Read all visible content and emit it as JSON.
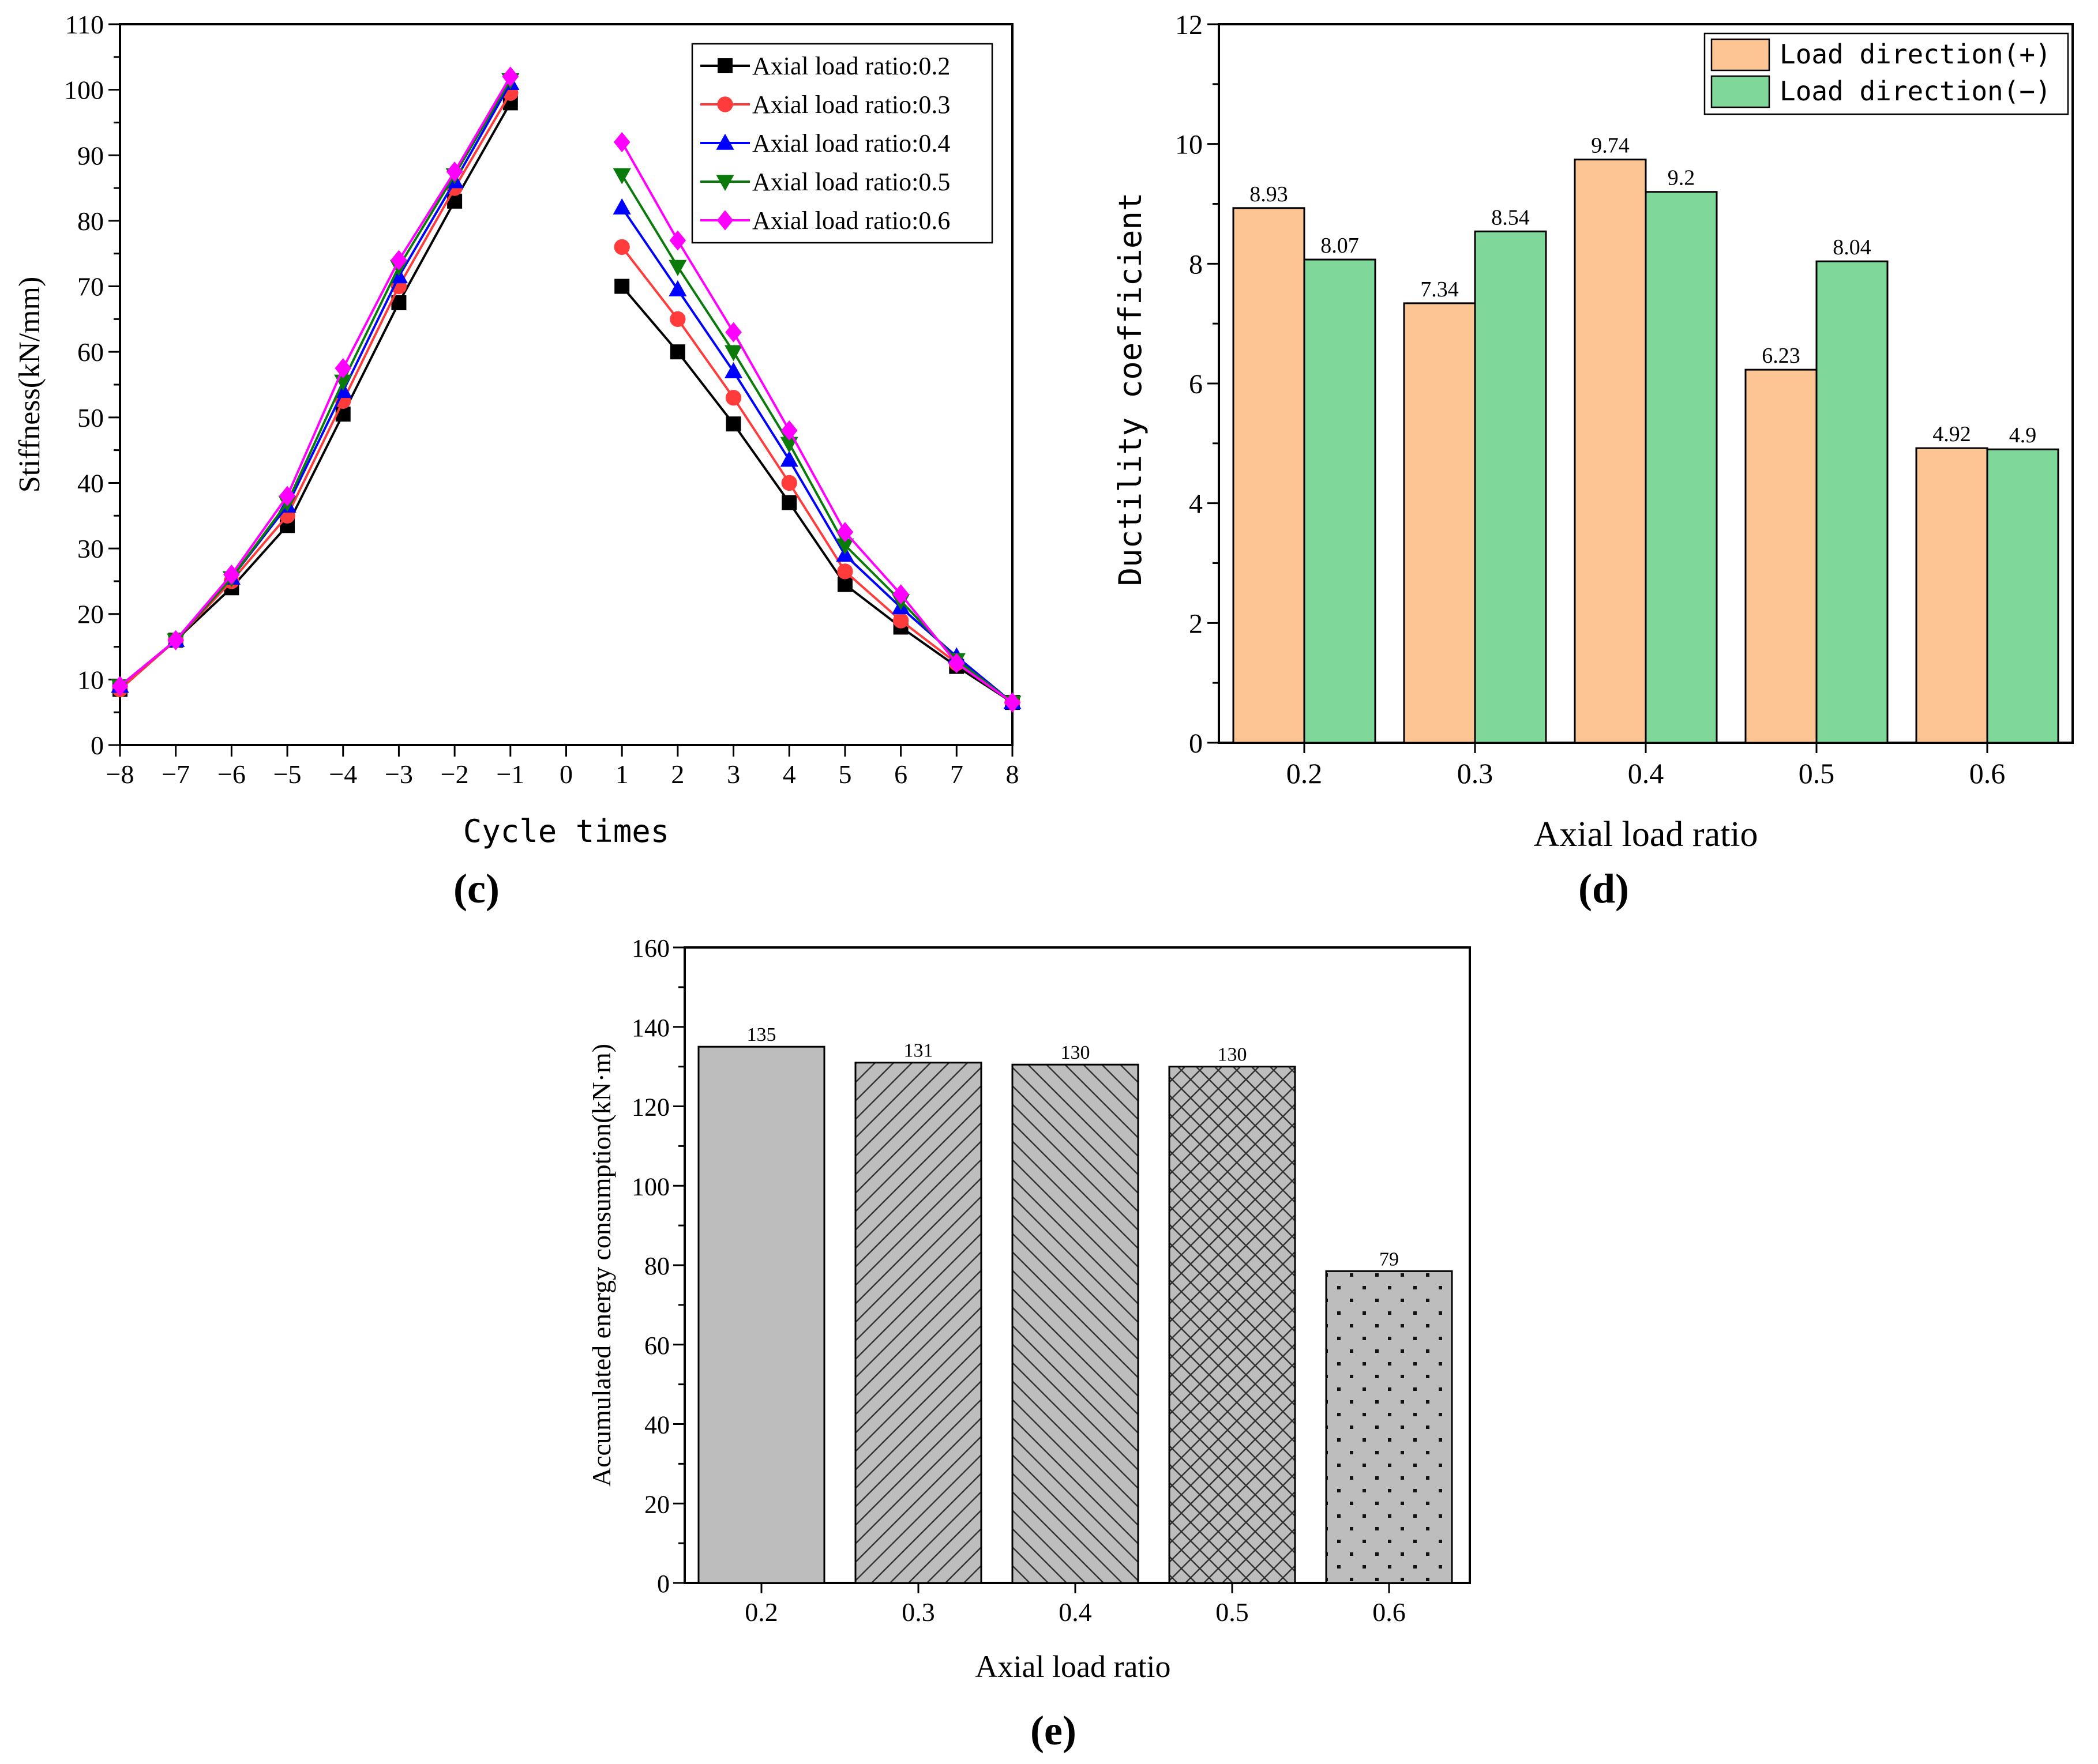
{
  "panel_labels": {
    "c": "(c)",
    "d": "(d)",
    "e": "(e)"
  },
  "colors": {
    "s02": "#000000",
    "s03": "#ff3b3b",
    "s04": "#0000ff",
    "s05": "#0a7a0a",
    "s06": "#ff00ff",
    "plus": "#fdc593",
    "minus": "#7fd89a",
    "gray": "#bdbdbd"
  },
  "chart_data": [
    {
      "id": "c",
      "type": "line",
      "xlabel": "Cycle times",
      "ylabel": "Stiffness(kN/mm)",
      "xlim": [
        -8,
        8
      ],
      "ylim": [
        0,
        110
      ],
      "x_ticks": [
        "−8",
        "−7",
        "−6",
        "−5",
        "−4",
        "−3",
        "−2",
        "−1",
        "0",
        "1",
        "2",
        "3",
        "4",
        "5",
        "6",
        "7",
        "8"
      ],
      "y_ticks": [
        "0",
        "10",
        "20",
        "30",
        "40",
        "50",
        "60",
        "70",
        "80",
        "90",
        "100",
        "110"
      ],
      "legend_position": "top-right",
      "series": [
        {
          "name": "Axial load ratio:0.2",
          "color": "#000000",
          "marker": "square",
          "neg": [
            [
              -8,
              8.5
            ],
            [
              -7,
              16
            ],
            [
              -6,
              24
            ],
            [
              -5,
              33.5
            ],
            [
              -4,
              50.5
            ],
            [
              -3,
              67.5
            ],
            [
              -2,
              83
            ],
            [
              -1,
              98
            ]
          ],
          "pos": [
            [
              1,
              70
            ],
            [
              2,
              60
            ],
            [
              3,
              49
            ],
            [
              4,
              37
            ],
            [
              5,
              24.5
            ],
            [
              6,
              18
            ],
            [
              7,
              12
            ],
            [
              8,
              6.5
            ]
          ]
        },
        {
          "name": "Axial load ratio:0.3",
          "color": "#ff3b3b",
          "marker": "circle",
          "neg": [
            [
              -8,
              8.5
            ],
            [
              -7,
              16
            ],
            [
              -6,
              25
            ],
            [
              -5,
              35
            ],
            [
              -4,
              52.5
            ],
            [
              -3,
              70
            ],
            [
              -2,
              85
            ],
            [
              -1,
              99.5
            ]
          ],
          "pos": [
            [
              1,
              76
            ],
            [
              2,
              65
            ],
            [
              3,
              53
            ],
            [
              4,
              40
            ],
            [
              5,
              26.5
            ],
            [
              6,
              19
            ],
            [
              7,
              12.5
            ],
            [
              8,
              6.5
            ]
          ]
        },
        {
          "name": "Axial load ratio:0.4",
          "color": "#0000ff",
          "marker": "triangle",
          "neg": [
            [
              -8,
              9
            ],
            [
              -7,
              16
            ],
            [
              -6,
              25.5
            ],
            [
              -5,
              36.5
            ],
            [
              -4,
              54
            ],
            [
              -3,
              71.5
            ],
            [
              -2,
              86
            ],
            [
              -1,
              101
            ]
          ],
          "pos": [
            [
              1,
              82
            ],
            [
              2,
              69.5
            ],
            [
              3,
              57
            ],
            [
              4,
              43.5
            ],
            [
              5,
              29
            ],
            [
              6,
              21
            ],
            [
              7,
              13.5
            ],
            [
              8,
              6.5
            ]
          ]
        },
        {
          "name": "Axial load ratio:0.5",
          "color": "#0a7a0a",
          "marker": "triangle-down",
          "neg": [
            [
              -8,
              9
            ],
            [
              -7,
              16
            ],
            [
              -6,
              25.5
            ],
            [
              -5,
              37
            ],
            [
              -4,
              55.5
            ],
            [
              -3,
              73
            ],
            [
              -2,
              87
            ],
            [
              -1,
              101.5
            ]
          ],
          "pos": [
            [
              1,
              87
            ],
            [
              2,
              73
            ],
            [
              3,
              60
            ],
            [
              4,
              46
            ],
            [
              5,
              30.5
            ],
            [
              6,
              22
            ],
            [
              7,
              13
            ],
            [
              8,
              6.5
            ]
          ]
        },
        {
          "name": "Axial load ratio:0.6",
          "color": "#ff00ff",
          "marker": "diamond",
          "neg": [
            [
              -8,
              9
            ],
            [
              -7,
              16
            ],
            [
              -6,
              26
            ],
            [
              -5,
              38
            ],
            [
              -4,
              57.5
            ],
            [
              -3,
              74
            ],
            [
              -2,
              87.5
            ],
            [
              -1,
              102
            ]
          ],
          "pos": [
            [
              1,
              92
            ],
            [
              2,
              77
            ],
            [
              3,
              63
            ],
            [
              4,
              48
            ],
            [
              5,
              32.5
            ],
            [
              6,
              23
            ],
            [
              7,
              12.5
            ],
            [
              8,
              6.5
            ]
          ]
        }
      ]
    },
    {
      "id": "d",
      "type": "bar",
      "xlabel": "Axial load ratio",
      "ylabel": "Ductility coefficient",
      "ylim": [
        0,
        12
      ],
      "y_ticks": [
        "0",
        "2",
        "4",
        "6",
        "8",
        "10",
        "12"
      ],
      "categories": [
        "0.2",
        "0.3",
        "0.4",
        "0.5",
        "0.6"
      ],
      "legend_position": "top-right",
      "series": [
        {
          "name": "Load direction(+)",
          "color": "#fdc593",
          "values": [
            8.93,
            7.34,
            9.74,
            6.23,
            4.92
          ],
          "labels": [
            "8.93",
            "7.34",
            "9.74",
            "6.23",
            "4.92"
          ]
        },
        {
          "name": "Load direction(−)",
          "color": "#7fd89a",
          "values": [
            8.07,
            8.54,
            9.2,
            8.04,
            4.9
          ],
          "labels": [
            "8.07",
            "8.54",
            "9.2",
            "8.04",
            "4.9"
          ]
        }
      ]
    },
    {
      "id": "e",
      "type": "bar",
      "xlabel": "Axial load ratio",
      "ylabel": "Accumulated energy consumption(kN·m)",
      "ylim": [
        0,
        160
      ],
      "y_ticks": [
        "0",
        "20",
        "40",
        "60",
        "80",
        "100",
        "120",
        "140",
        "160"
      ],
      "categories": [
        "0.2",
        "0.3",
        "0.4",
        "0.5",
        "0.6"
      ],
      "values": [
        135,
        131,
        130.5,
        130,
        78.5
      ],
      "labels": [
        "135",
        "131",
        "130",
        "130",
        "79"
      ],
      "patterns": [
        "solid",
        "diag-right",
        "diag-left",
        "crosshatch",
        "dots"
      ]
    }
  ]
}
